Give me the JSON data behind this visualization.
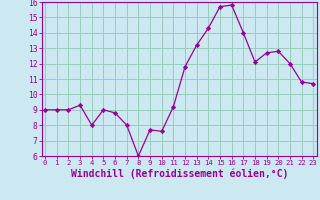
{
  "x": [
    0,
    1,
    2,
    3,
    4,
    5,
    6,
    7,
    8,
    9,
    10,
    11,
    12,
    13,
    14,
    15,
    16,
    17,
    18,
    19,
    20,
    21,
    22,
    23
  ],
  "y": [
    9.0,
    9.0,
    9.0,
    9.3,
    8.0,
    9.0,
    8.8,
    8.0,
    6.0,
    7.7,
    7.6,
    9.2,
    11.8,
    13.2,
    14.3,
    15.7,
    15.8,
    14.0,
    12.1,
    12.7,
    12.8,
    12.0,
    10.8,
    10.7
  ],
  "line_color": "#990099",
  "marker": "D",
  "marker_size": 2.2,
  "xlabel": "Windchill (Refroidissement éolien,°C)",
  "xlabel_fontsize": 7.0,
  "bg_color": "#cce8f0",
  "grid_color": "#99ccbb",
  "tick_labels": [
    "0",
    "1",
    "2",
    "3",
    "4",
    "5",
    "6",
    "7",
    "8",
    "9",
    "10",
    "11",
    "12",
    "13",
    "14",
    "15",
    "16",
    "17",
    "18",
    "19",
    "20",
    "21",
    "22",
    "23"
  ],
  "ylim": [
    6,
    16
  ],
  "yticks": [
    6,
    7,
    8,
    9,
    10,
    11,
    12,
    13,
    14,
    15,
    16
  ],
  "xlim_left": -0.3,
  "xlim_right": 23.3
}
